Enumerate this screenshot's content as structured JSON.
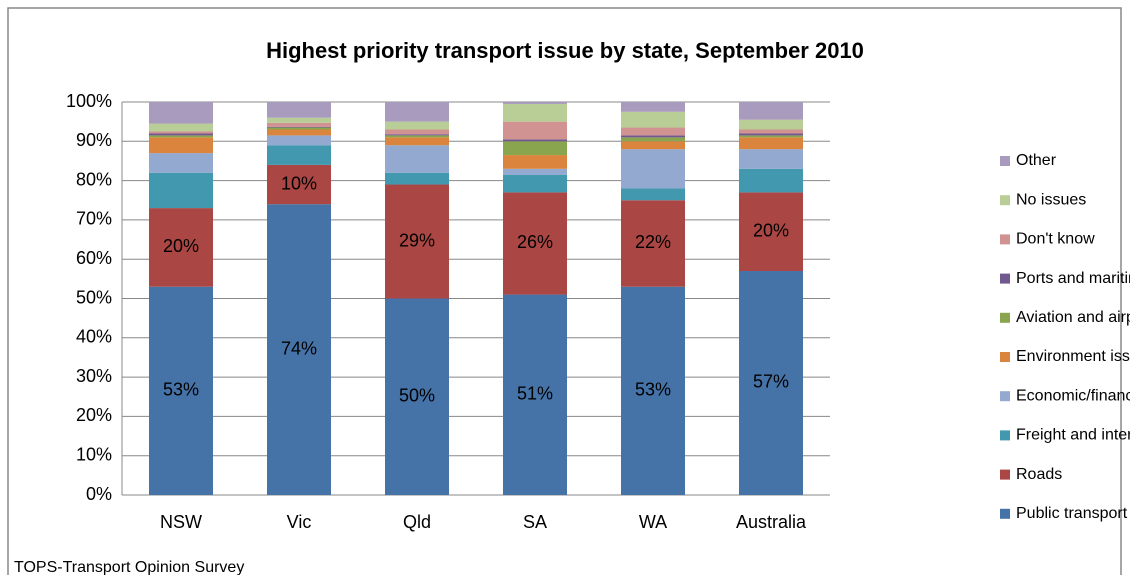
{
  "chart_data": {
    "type": "stacked_bar",
    "title": "Highest priority transport issue by state, September 2010",
    "note": "TOPS-Transport Opinion Survey",
    "categories": [
      "NSW",
      "Vic",
      "Qld",
      "SA",
      "WA",
      "Australia"
    ],
    "ylim": [
      0,
      100
    ],
    "yticks": [
      {
        "value": 0,
        "label": "0%"
      },
      {
        "value": 10,
        "label": "10%"
      },
      {
        "value": 20,
        "label": "20%"
      },
      {
        "value": 30,
        "label": "30%"
      },
      {
        "value": 40,
        "label": "40%"
      },
      {
        "value": 50,
        "label": "50%"
      },
      {
        "value": 60,
        "label": "60%"
      },
      {
        "value": 70,
        "label": "70%"
      },
      {
        "value": 80,
        "label": "80%"
      },
      {
        "value": 90,
        "label": "90%"
      },
      {
        "value": 100,
        "label": "100%"
      }
    ],
    "grid": true,
    "legend": "right",
    "series": [
      {
        "name": "Public transport",
        "color": "#4572a7",
        "values": [
          53,
          74,
          50,
          51,
          53,
          57
        ],
        "value_labels": [
          "53%",
          "74%",
          "50%",
          "51%",
          "53%",
          "57%"
        ]
      },
      {
        "name": "Roads",
        "color": "#aa4643",
        "values": [
          20,
          10,
          29,
          26,
          22,
          20
        ],
        "value_labels": [
          "20%",
          "10%",
          "29%",
          "26%",
          "22%",
          "20%"
        ]
      },
      {
        "name": "Freight and interstate rail",
        "color": "#4198af",
        "values": [
          9,
          5,
          3,
          4.5,
          3,
          6
        ]
      },
      {
        "name": "Economic/financial issues",
        "color": "#93a9cf",
        "values": [
          5,
          2.5,
          7,
          1.5,
          10,
          5
        ]
      },
      {
        "name": "Environment issues",
        "color": "#db843d",
        "values": [
          4,
          1.5,
          2,
          3.5,
          2,
          3
        ]
      },
      {
        "name": "Aviation and airports",
        "color": "#89a54e",
        "values": [
          0.5,
          0.5,
          0.5,
          3.5,
          1,
          0.5
        ]
      },
      {
        "name": "Ports and maritime",
        "color": "#71588f",
        "values": [
          0.5,
          0.2,
          0.3,
          0.5,
          0.5,
          0.5
        ]
      },
      {
        "name": "Don't know",
        "color": "#d19392",
        "values": [
          0.5,
          1,
          1.2,
          4.5,
          2,
          1
        ]
      },
      {
        "name": "No issues",
        "color": "#b9cd96",
        "values": [
          2,
          1.3,
          2,
          4.5,
          4,
          2.5
        ]
      },
      {
        "name": "Other",
        "color": "#a99bbd",
        "values": [
          5.5,
          4,
          5,
          0.5,
          2.5,
          4.5
        ]
      }
    ]
  }
}
